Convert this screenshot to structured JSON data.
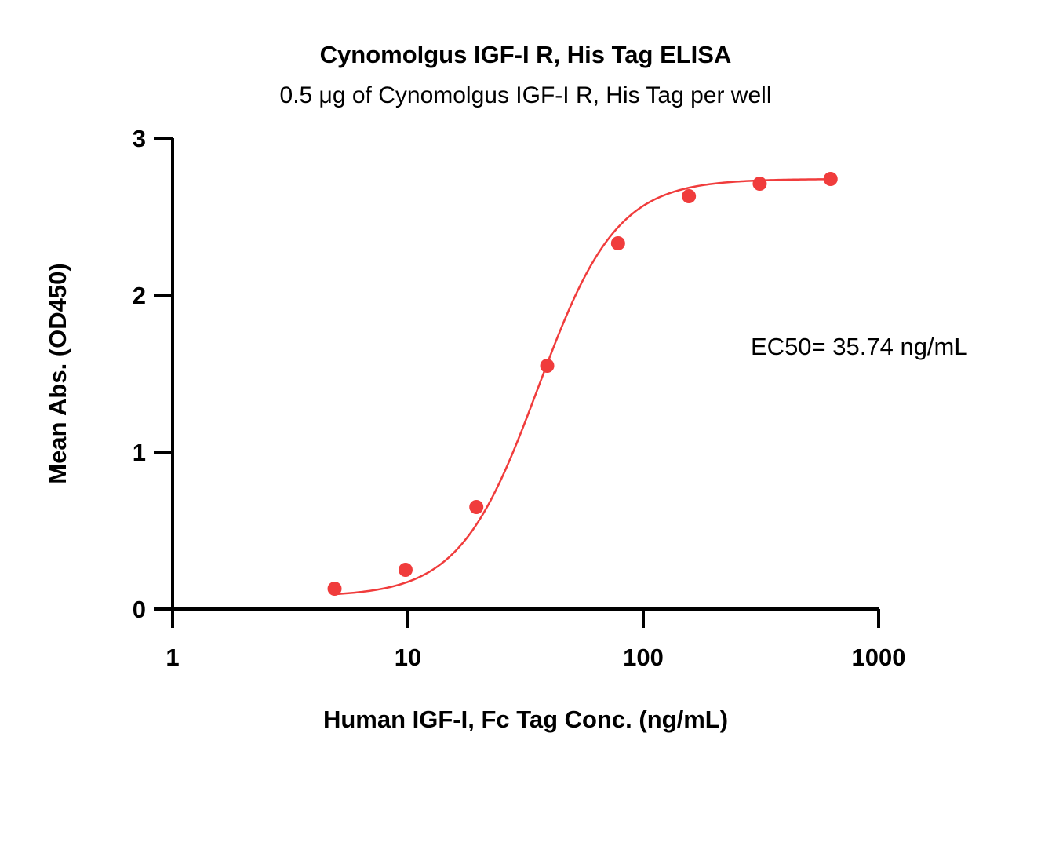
{
  "colors": {
    "series": "#f03c3c",
    "axis": "#000000",
    "background": "#ffffff"
  },
  "chart_data": {
    "type": "scatter",
    "title": "Cynomolgus IGF-I R, His Tag ELISA",
    "subtitle": "0.5 μg of Cynomolgus IGF-I R, His Tag per well",
    "xlabel": "Human IGF-I, Fc Tag Conc. (ng/mL)",
    "ylabel": "Mean Abs. (OD450)",
    "xscale": "log",
    "xlim": [
      1,
      1000
    ],
    "ylim": [
      0,
      3
    ],
    "xticks": [
      1,
      10,
      100,
      1000
    ],
    "xtick_labels": [
      "1",
      "10",
      "100",
      "1000"
    ],
    "yticks": [
      0,
      1,
      2,
      3
    ],
    "ytick_labels": [
      "0",
      "1",
      "2",
      "3"
    ],
    "grid": false,
    "legend": "none",
    "series": [
      {
        "x": [
          4.88,
          9.77,
          19.53,
          39.06,
          78.13,
          156.25,
          312.5,
          625
        ],
        "y": [
          0.13,
          0.25,
          0.65,
          1.55,
          2.33,
          2.63,
          2.71,
          2.74
        ],
        "fit": "4PL",
        "fit_params": {
          "bottom": 0.08,
          "top": 2.74,
          "ec50": 35.74,
          "hill": 2.6
        }
      }
    ],
    "annotations": [
      {
        "text": "EC50= 35.74 ng/mL"
      }
    ]
  }
}
